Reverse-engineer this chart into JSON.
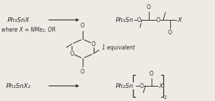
{
  "background_color": "#eeebe5",
  "text_color": "#2a2a2a",
  "font_size_main": 6.5,
  "font_size_small": 5.5,
  "font_size_tiny": 4.8,
  "arrow_color": "#3a3a3a",
  "line_color": "#2a2a2a",
  "top_reactant": "Ph₃SnX",
  "top_sub": "where X = NMe₂, OR",
  "bot_reactant": "Ph₂SnX₂",
  "equivalent": "1 equivalent"
}
